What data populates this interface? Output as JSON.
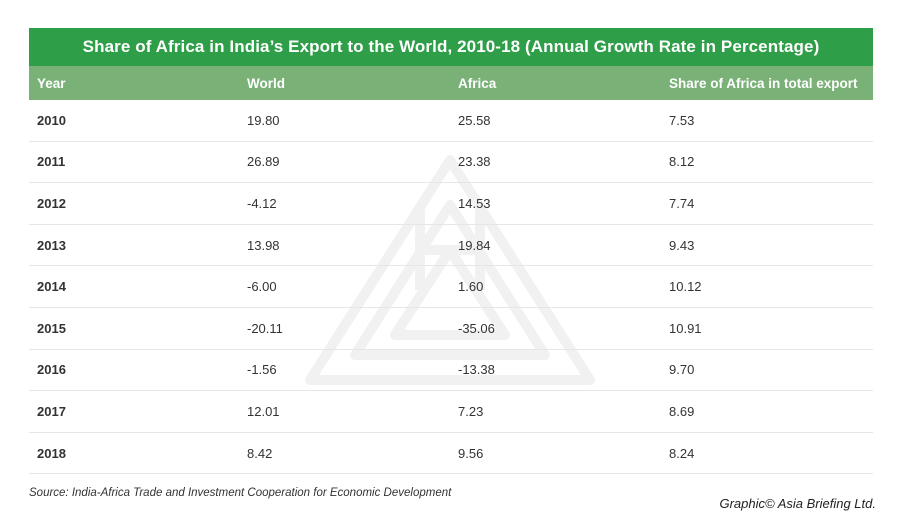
{
  "chart_data": {
    "type": "table",
    "title": "Share of Africa in India’s Export to the World, 2010-18 (Annual Growth Rate in Percentage)",
    "columns": [
      "Year",
      "World",
      "Africa",
      "Share of Africa in total export"
    ],
    "rows": [
      [
        "2010",
        "19.80",
        "25.58",
        "7.53"
      ],
      [
        "2011",
        "26.89",
        "23.38",
        "8.12"
      ],
      [
        "2012",
        "-4.12",
        "14.53",
        "7.74"
      ],
      [
        "2013",
        "13.98",
        "19.84",
        "9.43"
      ],
      [
        "2014",
        "-6.00",
        "1.60",
        "10.12"
      ],
      [
        "2015",
        "-20.11",
        "-35.06",
        "10.91"
      ],
      [
        "2016",
        "-1.56",
        "-13.38",
        "9.70"
      ],
      [
        "2017",
        "12.01",
        "7.23",
        "8.69"
      ],
      [
        "2018",
        "8.42",
        "9.56",
        "8.24"
      ]
    ]
  },
  "footer": {
    "source": "Source: India-Africa Trade and Investment Cooperation for Economic Development",
    "credit": "Graphic© Asia Briefing Ltd."
  },
  "colors": {
    "title_bg": "#2e9e48",
    "header_bg": "#79b177",
    "row_border": "#e6e6e6"
  },
  "watermark": {
    "icon": "asia-briefing-logo-icon"
  }
}
